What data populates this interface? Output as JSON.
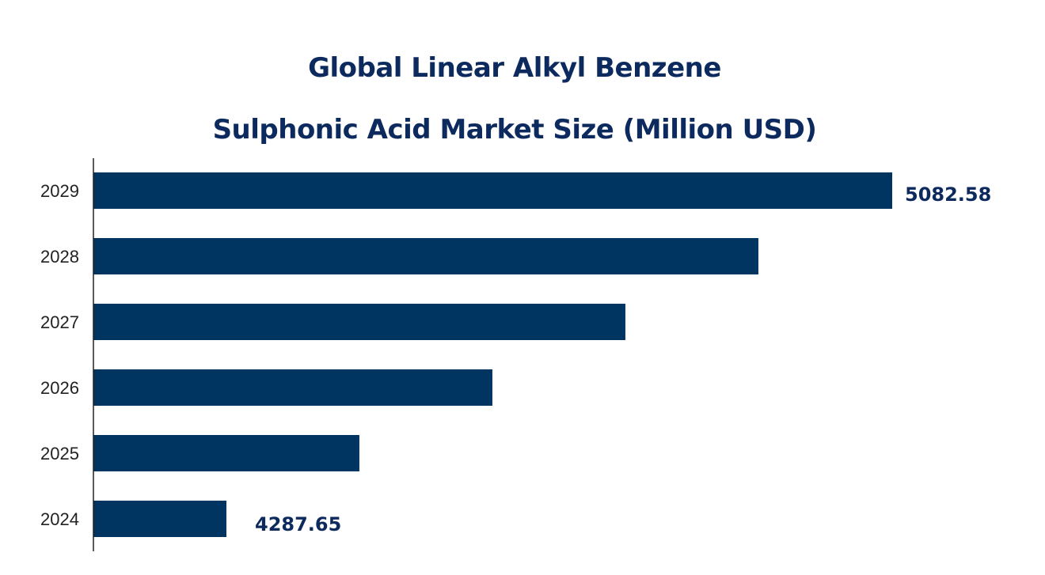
{
  "chart_data": {
    "type": "bar",
    "orientation": "horizontal",
    "title_lines": [
      "Global Linear Alkyl Benzene",
      "Sulphonic Acid Market Size (Million USD)"
    ],
    "categories": [
      "2029",
      "2028",
      "2027",
      "2026",
      "2025",
      "2024"
    ],
    "values": [
      5082.58,
      4922.8,
      4764.0,
      4605.2,
      4446.4,
      4287.65
    ],
    "data_labels": {
      "2029": "5082.58",
      "2024": "4287.65"
    },
    "xlabel": "",
    "ylabel": "",
    "xlim": [
      4128.85,
      5100
    ],
    "grid": false,
    "legend": "none",
    "colors": {
      "bar": "#003461",
      "title": "#0d2a5e",
      "label": "#0d2a5e"
    }
  }
}
